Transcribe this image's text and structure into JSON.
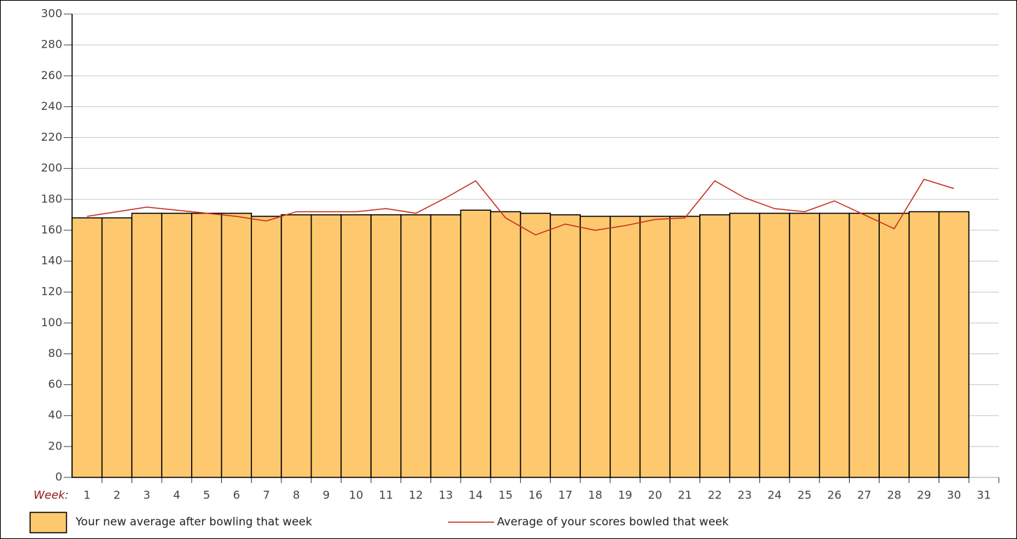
{
  "chart_data": {
    "type": "bar",
    "x_label": "Week:",
    "categories": [
      "1",
      "2",
      "3",
      "4",
      "5",
      "6",
      "7",
      "8",
      "9",
      "10",
      "11",
      "12",
      "13",
      "14",
      "15",
      "16",
      "17",
      "18",
      "19",
      "20",
      "21",
      "22",
      "23",
      "24",
      "25",
      "26",
      "27",
      "28",
      "29",
      "30",
      "31"
    ],
    "series": [
      {
        "name": "Your new average after bowling that week",
        "type": "bar",
        "color": "#fec96e",
        "values": [
          168,
          168,
          171,
          171,
          171,
          171,
          169,
          170,
          170,
          170,
          170,
          170,
          170,
          173,
          172,
          171,
          170,
          169,
          169,
          169,
          169,
          170,
          171,
          171,
          171,
          171,
          171,
          171,
          172,
          172,
          0
        ]
      },
      {
        "name": "Average of your scores bowled that week",
        "type": "line",
        "color": "#c62d1f",
        "values": [
          169,
          172,
          175,
          173,
          171,
          169,
          166,
          172,
          172,
          172,
          174,
          171,
          181,
          192,
          168,
          157,
          164,
          160,
          163,
          167,
          168,
          192,
          181,
          174,
          172,
          179,
          170,
          161,
          193,
          187,
          null
        ]
      }
    ],
    "ylim": [
      0,
      300
    ],
    "yticks": [
      0,
      20,
      40,
      60,
      80,
      100,
      120,
      140,
      160,
      180,
      200,
      220,
      240,
      260,
      280,
      300
    ],
    "grid": true
  }
}
